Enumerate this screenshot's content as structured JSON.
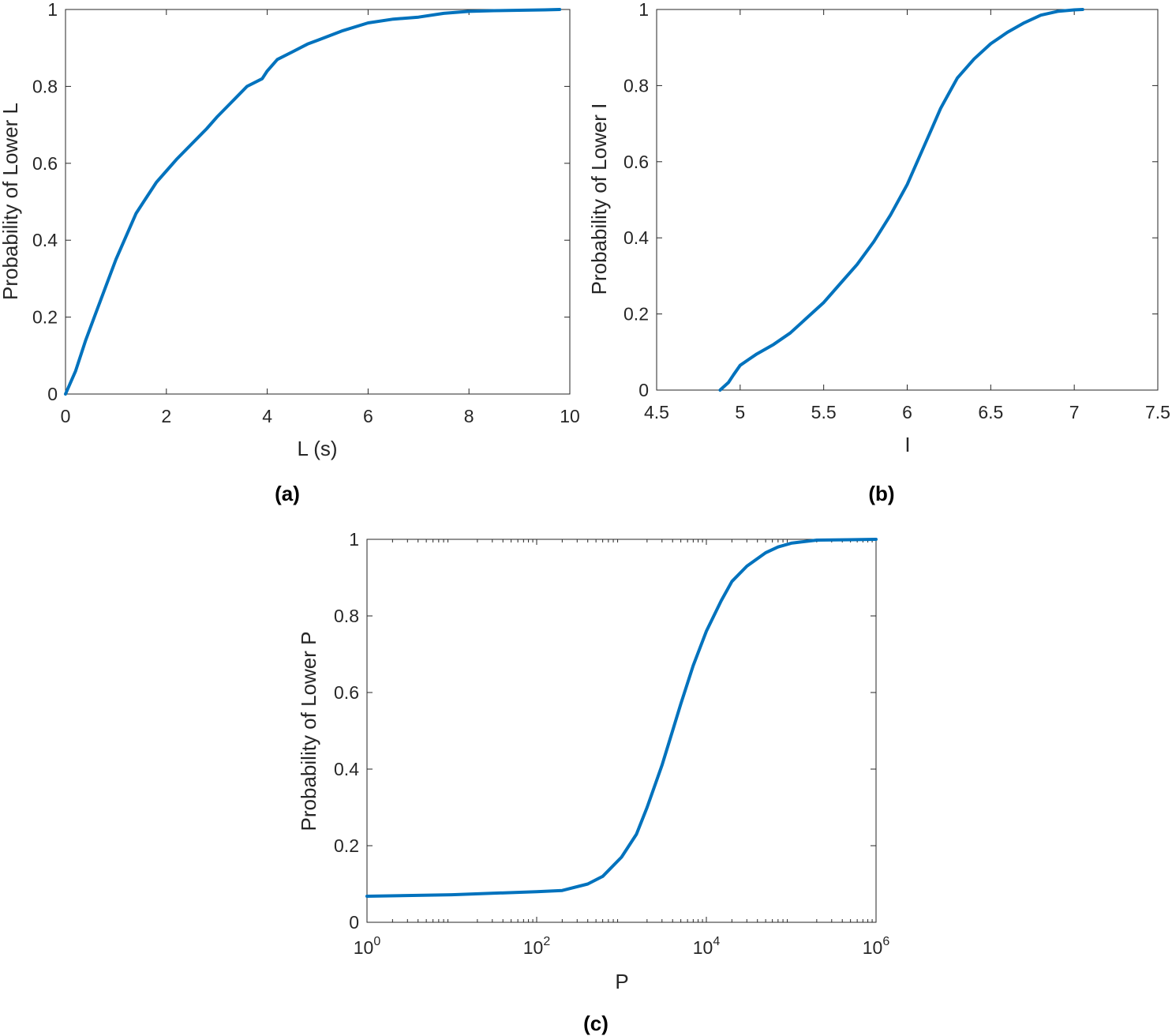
{
  "style": {
    "line_color": "#0072BD",
    "axis_color": "#262626"
  },
  "chart_data": [
    {
      "panel": "(a)",
      "type": "line",
      "xlabel": "L (s)",
      "ylabel": "Probability of Lower L",
      "xscale": "linear",
      "xlim": [
        0,
        10
      ],
      "ylim": [
        0,
        1
      ],
      "xticks": [
        0,
        2,
        4,
        6,
        8,
        10
      ],
      "xtick_labels": [
        "0",
        "2",
        "4",
        "6",
        "8",
        "10"
      ],
      "yticks": [
        0,
        0.2,
        0.4,
        0.6,
        0.8,
        1
      ],
      "ytick_labels": [
        "0",
        "0.2",
        "0.4",
        "0.6",
        "0.8",
        "1"
      ],
      "grid": false,
      "series": [
        {
          "x": [
            0,
            0.2,
            0.4,
            0.6,
            0.8,
            1.0,
            1.2,
            1.4,
            1.6,
            1.8,
            2.0,
            2.2,
            2.5,
            2.8,
            3.0,
            3.3,
            3.6,
            3.9,
            4.0,
            4.2,
            4.5,
            4.8,
            5.0,
            5.5,
            6.0,
            6.5,
            7.0,
            7.5,
            8.0,
            8.5,
            9.0,
            9.5,
            9.8
          ],
          "y": [
            0,
            0.06,
            0.14,
            0.21,
            0.28,
            0.35,
            0.41,
            0.47,
            0.51,
            0.55,
            0.58,
            0.61,
            0.65,
            0.69,
            0.72,
            0.76,
            0.8,
            0.82,
            0.84,
            0.87,
            0.89,
            0.91,
            0.92,
            0.945,
            0.965,
            0.975,
            0.98,
            0.99,
            0.995,
            0.997,
            0.998,
            0.999,
            1.0
          ]
        }
      ]
    },
    {
      "panel": "(b)",
      "type": "line",
      "xlabel": "I",
      "ylabel": "Probability of Lower I",
      "xscale": "linear",
      "xlim": [
        4.5,
        7.5
      ],
      "ylim": [
        0,
        1
      ],
      "xticks": [
        4.5,
        5,
        5.5,
        6,
        6.5,
        7,
        7.5
      ],
      "xtick_labels": [
        "4.5",
        "5",
        "5.5",
        "6",
        "6.5",
        "7",
        "7.5"
      ],
      "yticks": [
        0,
        0.2,
        0.4,
        0.6,
        0.8,
        1
      ],
      "ytick_labels": [
        "0",
        "0.2",
        "0.4",
        "0.6",
        "0.8",
        "1"
      ],
      "grid": false,
      "series": [
        {
          "x": [
            4.88,
            4.93,
            4.96,
            5.0,
            5.05,
            5.1,
            5.2,
            5.3,
            5.4,
            5.5,
            5.6,
            5.7,
            5.8,
            5.9,
            6.0,
            6.05,
            6.1,
            6.15,
            6.2,
            6.25,
            6.3,
            6.4,
            6.5,
            6.6,
            6.7,
            6.8,
            6.9,
            7.0,
            7.05
          ],
          "y": [
            0,
            0.02,
            0.04,
            0.065,
            0.08,
            0.095,
            0.12,
            0.15,
            0.19,
            0.23,
            0.28,
            0.33,
            0.39,
            0.46,
            0.54,
            0.59,
            0.64,
            0.69,
            0.74,
            0.78,
            0.82,
            0.87,
            0.91,
            0.94,
            0.965,
            0.985,
            0.995,
            0.999,
            1.0
          ]
        }
      ]
    },
    {
      "panel": "(c)",
      "type": "line",
      "xlabel": "P",
      "ylabel": "Probability of Lower P",
      "xscale": "log",
      "xlim": [
        1,
        1000000
      ],
      "ylim": [
        0,
        1
      ],
      "xticks": [
        1,
        100,
        10000,
        1000000
      ],
      "xtick_labels": [
        {
          "base": "10",
          "exp": "0"
        },
        {
          "base": "10",
          "exp": "2"
        },
        {
          "base": "10",
          "exp": "4"
        },
        {
          "base": "10",
          "exp": "6"
        }
      ],
      "yticks": [
        0,
        0.2,
        0.4,
        0.6,
        0.8,
        1
      ],
      "ytick_labels": [
        "0",
        "0.2",
        "0.4",
        "0.6",
        "0.8",
        "1"
      ],
      "grid": false,
      "series": [
        {
          "x": [
            1,
            10,
            100,
            200,
            400,
            600,
            1000,
            1500,
            2000,
            3000,
            4000,
            5000,
            7000,
            10000,
            15000,
            20000,
            30000,
            50000,
            70000,
            100000,
            200000,
            500000,
            1000000
          ],
          "y": [
            0.068,
            0.072,
            0.08,
            0.083,
            0.1,
            0.12,
            0.17,
            0.23,
            0.3,
            0.41,
            0.5,
            0.57,
            0.67,
            0.76,
            0.84,
            0.89,
            0.93,
            0.965,
            0.98,
            0.99,
            0.998,
            0.999,
            1.0
          ]
        }
      ]
    }
  ]
}
